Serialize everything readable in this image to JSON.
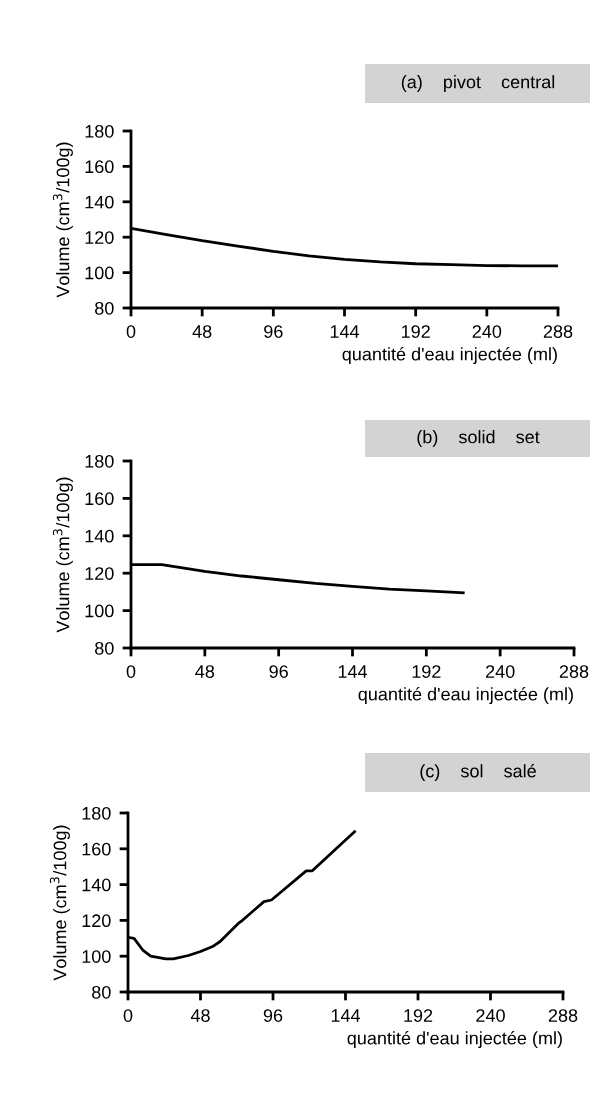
{
  "chart_data": [
    {
      "type": "line",
      "title": "(a)    pivot    central",
      "xlabel": "quantité d'eau injectée (ml)",
      "ylabel": "Volume (cm$^{3}$/100g)",
      "xlim": [
        0,
        288
      ],
      "ylim": [
        80,
        180
      ],
      "xticks": [
        0,
        48,
        96,
        144,
        192,
        240,
        288
      ],
      "yticks": [
        80,
        100,
        120,
        140,
        160,
        180
      ],
      "grid": false,
      "legend": false,
      "marker": "none",
      "line_style": "solid",
      "series": [
        {
          "color": "#000000",
          "x": [
            0,
            24,
            48,
            72,
            96,
            120,
            144,
            168,
            192,
            216,
            240,
            264,
            288
          ],
          "values": [
            125,
            121.5,
            118,
            115,
            112,
            109.5,
            107.5,
            106,
            105,
            104.5,
            104,
            103.8,
            103.8
          ]
        }
      ]
    },
    {
      "type": "line",
      "title": "(b)    solid    set",
      "xlabel": "quantité d'eau injectée (ml)",
      "ylabel": "Volume (cm$^{3}$/100g)",
      "xlim": [
        0,
        288
      ],
      "ylim": [
        80,
        180
      ],
      "xticks": [
        0,
        48,
        96,
        144,
        192,
        240,
        288
      ],
      "yticks": [
        80,
        100,
        120,
        140,
        160,
        180
      ],
      "grid": false,
      "legend": false,
      "marker": "none",
      "line_style": "solid",
      "series": [
        {
          "color": "#000000",
          "x": [
            0,
            20,
            48,
            72,
            96,
            120,
            144,
            168,
            192,
            216
          ],
          "values": [
            124.6,
            124.6,
            121,
            118.5,
            116.5,
            114.5,
            113,
            111.5,
            110.5,
            109.5
          ]
        }
      ]
    },
    {
      "type": "line",
      "title": "(c)    sol    salé",
      "xlabel": "quantité d'eau injectée (ml)",
      "ylabel": "Volume (cm$^{3}$/100g)",
      "xlim": [
        0,
        288
      ],
      "ylim": [
        80,
        180
      ],
      "xticks": [
        0,
        48,
        96,
        144,
        192,
        240,
        288
      ],
      "yticks": [
        80,
        100,
        120,
        140,
        160,
        180
      ],
      "grid": false,
      "legend": false,
      "marker": "none",
      "line_style": "solid",
      "series": [
        {
          "color": "#000000",
          "x": [
            0,
            4,
            10,
            15,
            25,
            30,
            40,
            48,
            56,
            61,
            65,
            73,
            76,
            90,
            95,
            118,
            122,
            150
          ],
          "values": [
            110.5,
            110,
            103.2,
            100,
            98.5,
            98.5,
            100.4,
            102.6,
            105.4,
            108.2,
            111.5,
            118.3,
            120.2,
            130.5,
            131.4,
            147.7,
            147.7,
            169.5
          ]
        }
      ]
    }
  ]
}
